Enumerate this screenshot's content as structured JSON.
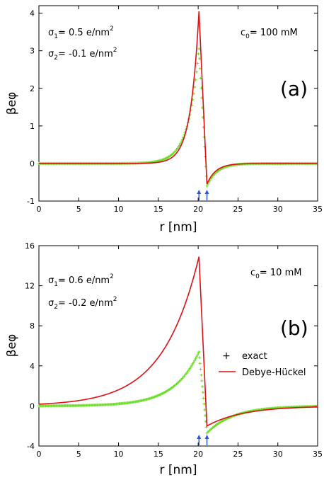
{
  "colors": {
    "exact": "#66dd22",
    "debye": "#dd1111",
    "arrow": "#2a55dd",
    "axis": "#000000"
  },
  "chart_data": [
    {
      "type": "line",
      "panel_label": "(a)",
      "xlabel": "r [nm]",
      "ylabel": "βeφ",
      "xlim": [
        0,
        35
      ],
      "ylim": [
        -1,
        4.2
      ],
      "x_ticks": [
        0,
        5,
        10,
        15,
        20,
        25,
        30,
        35
      ],
      "y_ticks": [
        -1,
        0,
        1,
        2,
        3,
        4
      ],
      "annotations": {
        "sigma1": {
          "sym": "σ",
          "sub": "1",
          "val": "= 0.5 e/nm",
          "sup": "2"
        },
        "sigma2": {
          "sym": "σ",
          "sub": "2",
          "val": "= -0.1 e/nm",
          "sup": "2"
        },
        "conc": {
          "sym": "c",
          "sub": "0",
          "val": "= 100 mM"
        }
      },
      "arrows_x": [
        20.1,
        21.1
      ],
      "model": {
        "x1": 20.1,
        "x2": 21.1,
        "peak": 3.05,
        "trough": -0.6,
        "kappa_left": 0.75,
        "kappa_right": 0.8
      },
      "series": [
        {
          "name": "exact",
          "style": "markers",
          "peak": 3.05,
          "trough": -0.6,
          "kappa_left": 0.75,
          "kappa_right": 0.8
        },
        {
          "name": "Debye-Hückel",
          "style": "line",
          "peak": 4.05,
          "trough": -0.55,
          "kappa_left": 0.95,
          "kappa_right": 0.9
        }
      ],
      "legend": false
    },
    {
      "type": "line",
      "panel_label": "(b)",
      "xlabel": "r [nm]",
      "ylabel": "βeφ",
      "xlim": [
        0,
        35
      ],
      "ylim": [
        -4,
        16
      ],
      "x_ticks": [
        0,
        5,
        10,
        15,
        20,
        25,
        30,
        35
      ],
      "y_ticks": [
        -4,
        0,
        4,
        8,
        12,
        16
      ],
      "annotations": {
        "sigma1": {
          "sym": "σ",
          "sub": "1",
          "val": "= 0.6 e/nm",
          "sup": "2"
        },
        "sigma2": {
          "sym": "σ",
          "sub": "2",
          "val": "= -0.2 e/nm",
          "sup": "2"
        },
        "conc": {
          "sym": "c",
          "sub": "0",
          "val": "= 10 mM"
        }
      },
      "arrows_x": [
        20.1,
        21.1
      ],
      "series": [
        {
          "name": "exact",
          "style": "markers",
          "peak": 5.4,
          "trough": -2.7,
          "kappa_left": 0.32,
          "kappa_right": 0.3
        },
        {
          "name": "Debye-Hückel",
          "style": "line",
          "peak": 14.9,
          "trough": -2.0,
          "kappa_left": 0.22,
          "kappa_right": 0.22
        }
      ],
      "legend": true,
      "legend_position": "right"
    }
  ]
}
